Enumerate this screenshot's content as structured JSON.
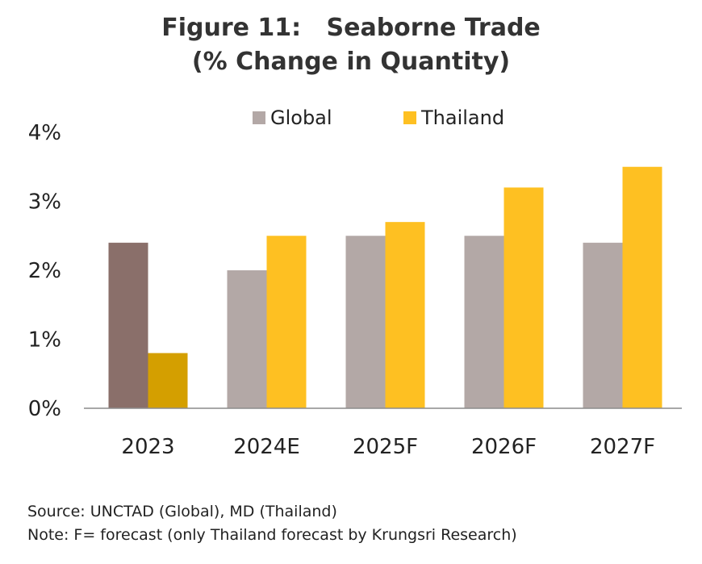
{
  "title": {
    "line1": "Figure 11:   Seaborne Trade",
    "line2": "(% Change in Quantity)"
  },
  "chart_data": {
    "type": "bar",
    "categories": [
      "2023",
      "2024E",
      "2025F",
      "2026F",
      "2027F"
    ],
    "series": [
      {
        "name": "Global",
        "values": [
          2.4,
          2.0,
          2.5,
          2.5,
          2.4
        ],
        "color": "#b3a8a6",
        "highlight_color": "#8a6f6a"
      },
      {
        "name": "Thailand",
        "values": [
          0.8,
          2.5,
          2.7,
          3.2,
          3.5
        ],
        "color": "#fec022",
        "highlight_color": "#d49f00"
      }
    ],
    "highlight_category": "2023",
    "yticks": [
      "0%",
      "1%",
      "2%",
      "3%",
      "4%"
    ],
    "ylim": [
      0,
      4
    ],
    "grid": false,
    "legend_position": "top"
  },
  "footer": {
    "source": "Source: UNCTAD (Global), MD (Thailand)",
    "note": "Note: F= forecast (only Thailand forecast by Krungsri Research)"
  }
}
